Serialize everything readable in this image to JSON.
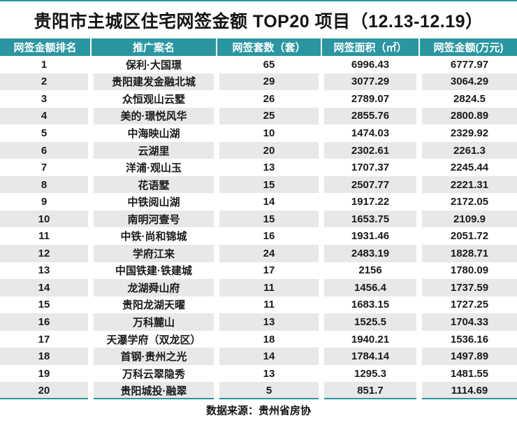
{
  "colors": {
    "accent": "#2A96A2",
    "zebra": "#E8E8E8",
    "text": "#1A1A1A",
    "header_text": "#FFFFFF"
  },
  "chart_data": {
    "type": "table",
    "title": "贵阳市主城区住宅网签金额 TOP20 项目（12.13-12.19）",
    "source": "数据来源：贵州省房协",
    "columns": [
      "网签金额排名",
      "推广案名",
      "网签套数（套）",
      "网签面积（㎡）",
      "网签金额(万元)"
    ],
    "rows": [
      {
        "rank": "1",
        "name": "保利·大国璟",
        "units": "65",
        "area": "6996.43",
        "amount": "6777.97"
      },
      {
        "rank": "2",
        "name": "贵阳建发金融北城",
        "units": "29",
        "area": "3077.29",
        "amount": "3064.29"
      },
      {
        "rank": "3",
        "name": "众恒观山云墅",
        "units": "26",
        "area": "2789.07",
        "amount": "2824.5"
      },
      {
        "rank": "4",
        "name": "美的·璟悦风华",
        "units": "25",
        "area": "2855.76",
        "amount": "2800.89"
      },
      {
        "rank": "5",
        "name": "中海映山湖",
        "units": "10",
        "area": "1474.03",
        "amount": "2329.92"
      },
      {
        "rank": "6",
        "name": "云湖里",
        "units": "20",
        "area": "2302.61",
        "amount": "2261.3"
      },
      {
        "rank": "7",
        "name": "洋浦·观山玉",
        "units": "13",
        "area": "1707.37",
        "amount": "2245.44"
      },
      {
        "rank": "8",
        "name": "花语墅",
        "units": "15",
        "area": "2507.77",
        "amount": "2221.31"
      },
      {
        "rank": "9",
        "name": "中铁阅山湖",
        "units": "14",
        "area": "1917.22",
        "amount": "2172.05"
      },
      {
        "rank": "10",
        "name": "南明河壹号",
        "units": "15",
        "area": "1653.75",
        "amount": "2109.9"
      },
      {
        "rank": "11",
        "name": "中铁·尚和锦城",
        "units": "16",
        "area": "1931.46",
        "amount": "2051.72"
      },
      {
        "rank": "12",
        "name": "学府江来",
        "units": "24",
        "area": "2483.19",
        "amount": "1828.71"
      },
      {
        "rank": "13",
        "name": "中国铁建·铁建城",
        "units": "17",
        "area": "2156",
        "amount": "1780.09"
      },
      {
        "rank": "14",
        "name": "龙湖舜山府",
        "units": "11",
        "area": "1456.4",
        "amount": "1737.59"
      },
      {
        "rank": "15",
        "name": "贵阳龙湖天曜",
        "units": "11",
        "area": "1683.15",
        "amount": "1727.25"
      },
      {
        "rank": "16",
        "name": "万科麓山",
        "units": "13",
        "area": "1525.5",
        "amount": "1704.33"
      },
      {
        "rank": "17",
        "name": "天瀑学府（双龙区）",
        "units": "18",
        "area": "1940.21",
        "amount": "1536.16"
      },
      {
        "rank": "18",
        "name": "首钢·贵州之光",
        "units": "14",
        "area": "1784.14",
        "amount": "1497.89"
      },
      {
        "rank": "19",
        "name": "万科云翠隐秀",
        "units": "13",
        "area": "1295.3",
        "amount": "1481.55"
      },
      {
        "rank": "20",
        "name": "贵阳城投·融翠",
        "units": "5",
        "area": "851.7",
        "amount": "1114.69"
      }
    ]
  }
}
